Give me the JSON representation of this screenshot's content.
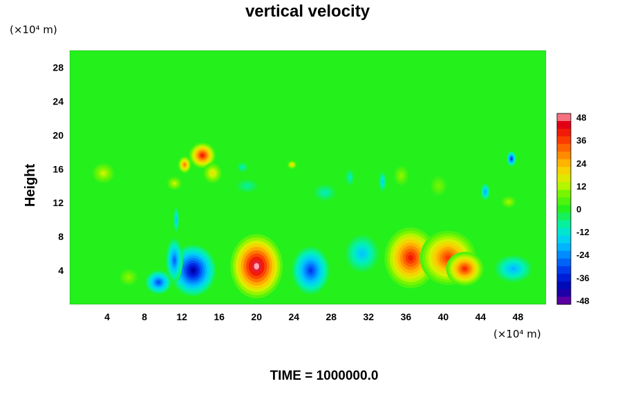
{
  "chart_data": {
    "type": "heatmap",
    "title": "vertical velocity",
    "ylabel": "Height",
    "xlabel": "",
    "x_unit": "(×10⁴ m)",
    "y_unit": "(×10⁴ m)",
    "footer": "TIME = 1000000.0",
    "xlim": [
      0,
      51
    ],
    "ylim": [
      0,
      30
    ],
    "x_ticks": [
      4,
      8,
      12,
      16,
      20,
      24,
      28,
      32,
      36,
      40,
      44,
      48
    ],
    "y_ticks": [
      4,
      8,
      12,
      16,
      20,
      24,
      28
    ],
    "colorbar": {
      "range": [
        -50,
        50
      ],
      "ticks": [
        48,
        36,
        24,
        12,
        0,
        -12,
        -24,
        -36,
        -48
      ]
    },
    "background_value": 0,
    "features": [
      {
        "x": 20.0,
        "y": 4.5,
        "rx": 2.8,
        "ry": 3.8,
        "value": 50
      },
      {
        "x": 13.2,
        "y": 4.0,
        "rx": 2.4,
        "ry": 3.0,
        "value": -42
      },
      {
        "x": 9.5,
        "y": 2.6,
        "rx": 1.4,
        "ry": 1.4,
        "value": -30
      },
      {
        "x": 11.2,
        "y": 5.2,
        "rx": 0.9,
        "ry": 2.6,
        "value": -28
      },
      {
        "x": 25.8,
        "y": 4.0,
        "rx": 2.0,
        "ry": 2.8,
        "value": -32
      },
      {
        "x": 31.3,
        "y": 6.0,
        "rx": 1.8,
        "ry": 2.2,
        "value": -18
      },
      {
        "x": 36.5,
        "y": 5.5,
        "rx": 2.8,
        "ry": 3.6,
        "value": 40
      },
      {
        "x": 40.5,
        "y": 5.5,
        "rx": 3.0,
        "ry": 3.2,
        "value": 36
      },
      {
        "x": 42.3,
        "y": 4.2,
        "rx": 2.0,
        "ry": 2.0,
        "value": 38
      },
      {
        "x": 47.5,
        "y": 4.2,
        "rx": 2.0,
        "ry": 1.6,
        "value": -20
      },
      {
        "x": 6.3,
        "y": 3.2,
        "rx": 1.0,
        "ry": 1.0,
        "value": 10
      },
      {
        "x": 14.2,
        "y": 17.6,
        "rx": 1.4,
        "ry": 1.5,
        "value": 40
      },
      {
        "x": 12.3,
        "y": 16.5,
        "rx": 0.7,
        "ry": 1.0,
        "value": 30
      },
      {
        "x": 15.3,
        "y": 15.5,
        "rx": 1.0,
        "ry": 1.2,
        "value": 18
      },
      {
        "x": 11.2,
        "y": 14.3,
        "rx": 0.8,
        "ry": 0.8,
        "value": 14
      },
      {
        "x": 3.6,
        "y": 15.5,
        "rx": 1.2,
        "ry": 1.2,
        "value": 14
      },
      {
        "x": 47.3,
        "y": 17.2,
        "rx": 0.5,
        "ry": 0.9,
        "value": -34
      },
      {
        "x": 47.0,
        "y": 12.1,
        "rx": 0.8,
        "ry": 0.7,
        "value": 12
      },
      {
        "x": 27.3,
        "y": 13.2,
        "rx": 1.2,
        "ry": 1.0,
        "value": -10
      },
      {
        "x": 33.5,
        "y": 14.5,
        "rx": 0.4,
        "ry": 1.2,
        "value": -16
      },
      {
        "x": 44.5,
        "y": 13.3,
        "rx": 0.5,
        "ry": 1.0,
        "value": -22
      },
      {
        "x": 19.0,
        "y": 14.0,
        "rx": 1.2,
        "ry": 0.8,
        "value": -8
      },
      {
        "x": 23.8,
        "y": 16.5,
        "rx": 0.5,
        "ry": 0.5,
        "value": 20
      },
      {
        "x": 35.5,
        "y": 15.2,
        "rx": 0.8,
        "ry": 1.2,
        "value": 10
      },
      {
        "x": 39.5,
        "y": 14.0,
        "rx": 0.9,
        "ry": 1.2,
        "value": 8
      },
      {
        "x": 11.4,
        "y": 10.0,
        "rx": 0.3,
        "ry": 1.5,
        "value": -18
      },
      {
        "x": 18.5,
        "y": 16.2,
        "rx": 0.6,
        "ry": 0.6,
        "value": -10
      },
      {
        "x": 30.0,
        "y": 15.0,
        "rx": 0.5,
        "ry": 1.0,
        "value": -10
      }
    ]
  }
}
